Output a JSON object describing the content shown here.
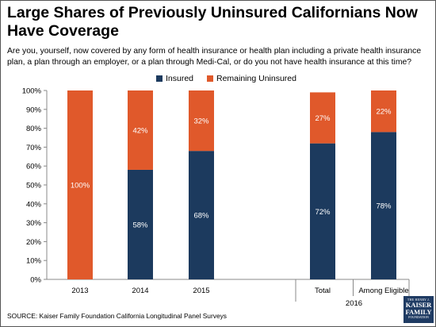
{
  "title": "Large Shares of Previously Uninsured Californians Now Have Coverage",
  "subtitle": "Are you, yourself, now covered by any form of health insurance or health plan including a private health insurance plan, a plan through an employer, or a plan through Medi-Cal, or do you not have health insurance at this time?",
  "source": "SOURCE: Kaiser Family Foundation California Longitudinal Panel Surveys",
  "logo": {
    "line1": "THE HENRY J.",
    "line2a": "KAISER",
    "line2b": "FAMILY",
    "line3": "FOUNDATION"
  },
  "colors": {
    "insured": "#1c3a5e",
    "uninsured": "#e0592b"
  },
  "chart_data": {
    "type": "bar",
    "stacked": true,
    "categories": [
      "2013",
      "2014",
      "2015",
      "Total",
      "Among Eligible"
    ],
    "group_label": {
      "text": "2016",
      "categories": [
        "Total",
        "Among Eligible"
      ]
    },
    "series": [
      {
        "name": "Insured",
        "values": [
          0,
          58,
          68,
          72,
          78
        ],
        "labels": [
          "",
          "58%",
          "68%",
          "72%",
          "78%"
        ]
      },
      {
        "name": "Remaining Uninsured",
        "values": [
          100,
          42,
          32,
          27,
          22
        ],
        "labels": [
          "100%",
          "42%",
          "32%",
          "27%",
          "22%"
        ]
      }
    ],
    "ylim": [
      0,
      100
    ],
    "yticks": [
      "0%",
      "10%",
      "20%",
      "30%",
      "40%",
      "50%",
      "60%",
      "70%",
      "80%",
      "90%",
      "100%"
    ],
    "grid": false,
    "legend": "top-center"
  }
}
